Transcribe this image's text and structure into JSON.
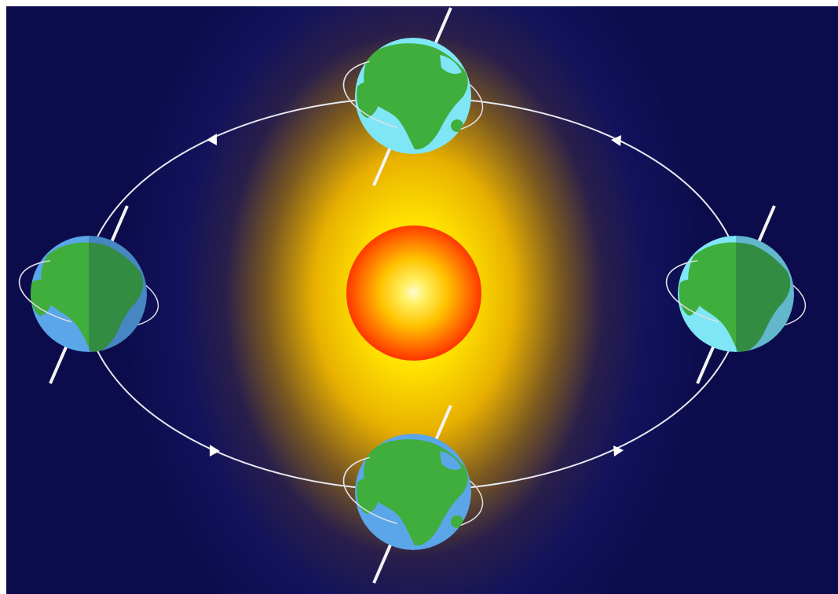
{
  "colors": {
    "background": "#10105a",
    "background_edge": "#0a0a48",
    "glow_inner": "#ffe000",
    "glow_outer": "#10105a",
    "sun_core": "#fff9b0",
    "sun_mid": "#ffd000",
    "sun_edge": "#ff3a00",
    "orbit": "#e8e8f0",
    "axis": "#f4f4f4",
    "ocean": "#5aa6e8",
    "ocean_lit": "#7fe6f6",
    "land": "#3fae3c",
    "land_lit": "#5cc04a",
    "night_shade": "#0a2a55"
  },
  "sun": {
    "icon": "sun-icon"
  },
  "orbit": {
    "icon": "orbit-path",
    "arrow_icon": "direction-arrow-icon"
  },
  "earths": [
    {
      "icon": "earth-globe-icon",
      "position": "top"
    },
    {
      "icon": "earth-globe-icon",
      "position": "left"
    },
    {
      "icon": "earth-globe-icon",
      "position": "right"
    },
    {
      "icon": "earth-globe-icon",
      "position": "bottom"
    }
  ]
}
